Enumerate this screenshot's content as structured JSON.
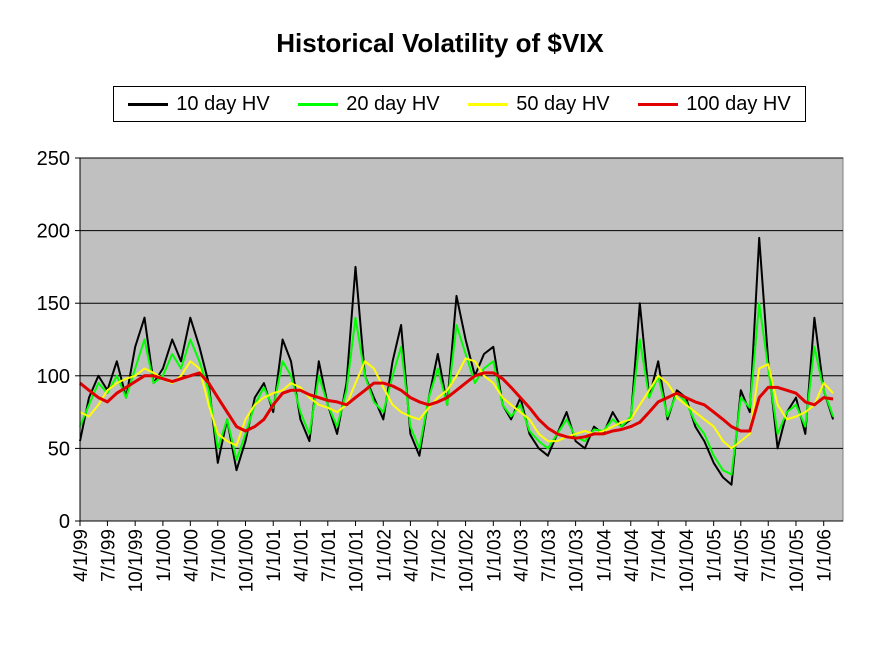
{
  "chart_data": {
    "type": "line",
    "title": "Historical Volatility of $VIX",
    "xlabel": "",
    "ylabel": "",
    "ylim": [
      0,
      250
    ],
    "yticks": [
      0,
      50,
      100,
      150,
      200,
      250
    ],
    "grid": "horizontal",
    "legend_position": "top",
    "plot_background": "#c0c0c0",
    "x_tick_labels": [
      "4/1/99",
      "7/1/99",
      "10/1/99",
      "1/1/00",
      "4/1/00",
      "7/1/00",
      "10/1/00",
      "1/1/01",
      "4/1/01",
      "7/1/01",
      "10/1/01",
      "1/1/02",
      "4/1/02",
      "7/1/02",
      "10/1/02",
      "1/1/03",
      "4/1/03",
      "7/1/03",
      "10/1/03",
      "1/1/04",
      "4/1/04",
      "7/1/04",
      "10/1/04",
      "1/1/05",
      "4/1/05",
      "7/1/05",
      "10/1/05",
      "1/1/06"
    ],
    "x": [
      "4/1/99",
      "5/1/99",
      "6/1/99",
      "7/1/99",
      "8/1/99",
      "9/1/99",
      "10/1/99",
      "11/1/99",
      "12/1/99",
      "1/1/00",
      "2/1/00",
      "3/1/00",
      "4/1/00",
      "5/1/00",
      "6/1/00",
      "7/1/00",
      "8/1/00",
      "9/1/00",
      "10/1/00",
      "11/1/00",
      "12/1/00",
      "1/1/01",
      "2/1/01",
      "3/1/01",
      "4/1/01",
      "5/1/01",
      "6/1/01",
      "7/1/01",
      "8/1/01",
      "9/1/01",
      "10/1/01",
      "11/1/01",
      "12/1/01",
      "1/1/02",
      "2/1/02",
      "3/1/02",
      "4/1/02",
      "5/1/02",
      "6/1/02",
      "7/1/02",
      "8/1/02",
      "9/1/02",
      "10/1/02",
      "11/1/02",
      "12/1/02",
      "1/1/03",
      "2/1/03",
      "3/1/03",
      "4/1/03",
      "5/1/03",
      "6/1/03",
      "7/1/03",
      "8/1/03",
      "9/1/03",
      "10/1/03",
      "11/1/03",
      "12/1/03",
      "1/1/04",
      "2/1/04",
      "3/1/04",
      "4/1/04",
      "5/1/04",
      "6/1/04",
      "7/1/04",
      "8/1/04",
      "9/1/04",
      "10/1/04",
      "11/1/04",
      "12/1/04",
      "1/1/05",
      "2/1/05",
      "3/1/05",
      "4/1/05",
      "5/1/05",
      "6/1/05",
      "7/1/05",
      "8/1/05",
      "9/1/05",
      "10/1/05",
      "11/1/05",
      "12/1/05",
      "1/1/06",
      "2/1/06"
    ],
    "series": [
      {
        "name": "10 day HV",
        "color": "#000000",
        "values": [
          55,
          85,
          100,
          90,
          110,
          85,
          120,
          140,
          95,
          105,
          125,
          110,
          140,
          120,
          95,
          40,
          70,
          35,
          55,
          85,
          95,
          75,
          125,
          110,
          70,
          55,
          110,
          80,
          60,
          95,
          175,
          100,
          85,
          70,
          110,
          135,
          60,
          45,
          85,
          115,
          80,
          155,
          125,
          100,
          115,
          120,
          80,
          70,
          85,
          60,
          50,
          45,
          60,
          75,
          55,
          50,
          65,
          60,
          75,
          65,
          70,
          150,
          85,
          110,
          70,
          90,
          85,
          65,
          55,
          40,
          30,
          25,
          90,
          75,
          195,
          110,
          50,
          75,
          85,
          60,
          140,
          90,
          70
        ]
      },
      {
        "name": "20 day HV",
        "color": "#00ff00",
        "values": [
          65,
          80,
          95,
          88,
          100,
          85,
          105,
          125,
          95,
          100,
          115,
          105,
          125,
          110,
          90,
          50,
          70,
          42,
          60,
          80,
          92,
          78,
          110,
          100,
          75,
          60,
          100,
          80,
          65,
          90,
          140,
          100,
          82,
          75,
          100,
          120,
          65,
          50,
          85,
          105,
          80,
          135,
          115,
          95,
          105,
          110,
          80,
          72,
          80,
          62,
          55,
          50,
          60,
          70,
          58,
          55,
          63,
          62,
          70,
          65,
          72,
          125,
          85,
          100,
          72,
          88,
          82,
          68,
          60,
          45,
          35,
          32,
          85,
          78,
          150,
          105,
          60,
          75,
          80,
          65,
          120,
          90,
          72
        ]
      },
      {
        "name": "50 day HV",
        "color": "#ffff00",
        "values": [
          75,
          72,
          80,
          90,
          95,
          98,
          100,
          105,
          102,
          98,
          95,
          100,
          110,
          105,
          80,
          60,
          55,
          52,
          70,
          80,
          85,
          88,
          90,
          95,
          92,
          85,
          80,
          78,
          75,
          80,
          95,
          110,
          105,
          92,
          80,
          75,
          72,
          70,
          78,
          85,
          90,
          100,
          112,
          110,
          100,
          95,
          85,
          80,
          75,
          70,
          60,
          55,
          55,
          58,
          60,
          62,
          60,
          62,
          65,
          68,
          70,
          80,
          90,
          100,
          95,
          85,
          80,
          75,
          70,
          65,
          55,
          50,
          55,
          60,
          105,
          108,
          80,
          70,
          72,
          75,
          80,
          95,
          88
        ]
      },
      {
        "name": "100 day HV",
        "color": "#e00000",
        "values": [
          95,
          90,
          85,
          82,
          88,
          92,
          96,
          100,
          100,
          98,
          96,
          98,
          100,
          102,
          95,
          85,
          75,
          65,
          62,
          65,
          70,
          80,
          88,
          90,
          90,
          87,
          85,
          83,
          82,
          80,
          85,
          90,
          95,
          95,
          93,
          90,
          85,
          82,
          80,
          82,
          85,
          90,
          95,
          100,
          102,
          102,
          98,
          92,
          85,
          78,
          70,
          64,
          60,
          58,
          57,
          58,
          60,
          60,
          62,
          63,
          65,
          68,
          75,
          82,
          85,
          88,
          85,
          82,
          80,
          75,
          70,
          65,
          62,
          62,
          85,
          92,
          92,
          90,
          88,
          82,
          80,
          85,
          84
        ]
      }
    ]
  }
}
